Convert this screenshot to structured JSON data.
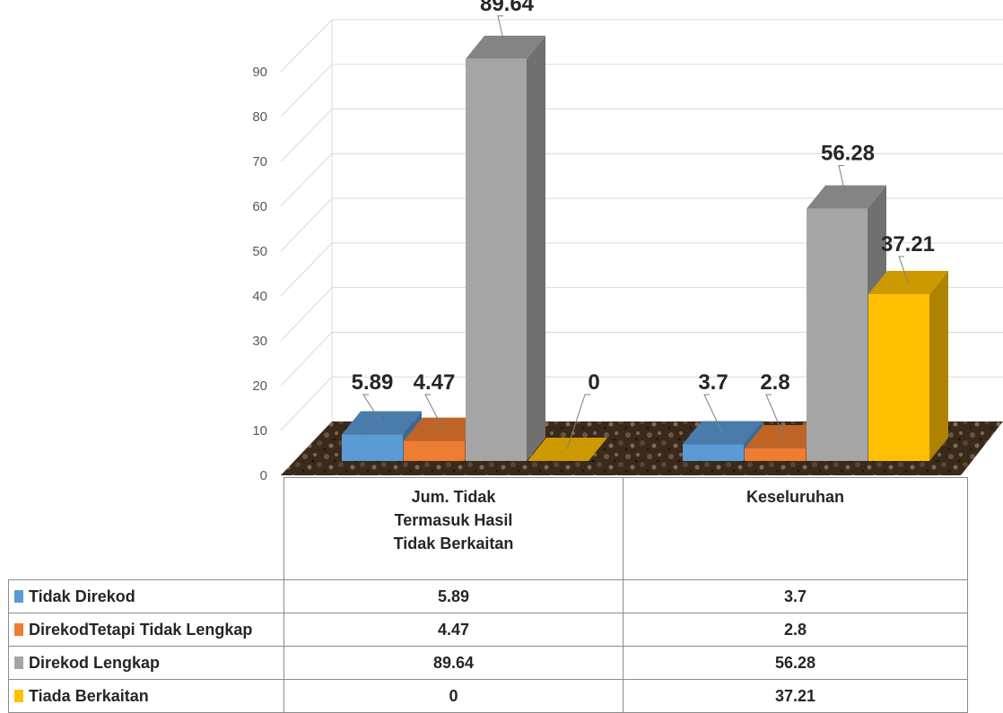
{
  "chart_data": {
    "type": "bar",
    "categories": [
      "Jum. Tidak Termasuk Hasil Tidak Berkaitan",
      "Keseluruhan"
    ],
    "category_lines": [
      [
        "Jum. Tidak",
        "Termasuk Hasil",
        "Tidak Berkaitan"
      ],
      [
        "Keseluruhan"
      ]
    ],
    "series": [
      {
        "name": "Tidak Direkod",
        "color": "#5b9bd5",
        "values": [
          5.89,
          3.7
        ]
      },
      {
        "name": "DirekodTetapi Tidak Lengkap",
        "color": "#ed7d31",
        "values": [
          4.47,
          2.8
        ]
      },
      {
        "name": "Direkod Lengkap",
        "color": "#a5a5a5",
        "values": [
          89.64,
          56.28
        ]
      },
      {
        "name": "Tiada Berkaitan",
        "color": "#ffc000",
        "values": [
          0,
          37.21
        ]
      }
    ],
    "value_labels": [
      [
        "5.89",
        "4.47",
        "89.64",
        "0"
      ],
      [
        "3.7",
        "2.8",
        "56.28",
        "37.21"
      ]
    ],
    "yticks": [
      "0",
      "10",
      "20",
      "30",
      "40",
      "50",
      "60",
      "70",
      "80",
      "90"
    ],
    "ylim": [
      0,
      90
    ],
    "grid": true,
    "legend": "data-table-below",
    "three_d": true
  }
}
